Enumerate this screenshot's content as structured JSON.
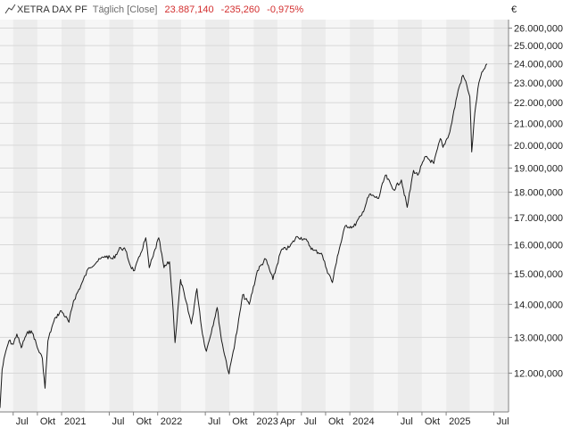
{
  "colors": {
    "price_line": "#1a1a1a",
    "band_light": "#f6f6f6",
    "band_dark": "#ececec",
    "grid": "#d8d8d8",
    "negative": "#d32f2f",
    "legend_gray": "#6e6e6e",
    "axis": "#808080"
  },
  "legend": {
    "icon": "line-chart-icon",
    "symbol": "XETRA DAX PF",
    "interval": "Täglich [Close]",
    "last": "23.887,140",
    "change": "-235,260",
    "change_pct": "-0,975%"
  },
  "chart_data": {
    "type": "line",
    "title": "",
    "xlabel": "",
    "ylabel": "",
    "currency_label": "€",
    "ylim": [
      11000,
      26500
    ],
    "y_scale": "log",
    "grid": true,
    "legend_position": "top-left",
    "x_range": [
      "2020-05-12",
      "2025-08-26"
    ],
    "y_ticks": [
      {
        "value": 12000,
        "label": "12.000,000"
      },
      {
        "value": 13000,
        "label": "13.000,000"
      },
      {
        "value": 14000,
        "label": "14.000,000"
      },
      {
        "value": 15000,
        "label": "15.000,000"
      },
      {
        "value": 16000,
        "label": "16.000,000"
      },
      {
        "value": 17000,
        "label": "17.000,000"
      },
      {
        "value": 18000,
        "label": "18.000,000"
      },
      {
        "value": 19000,
        "label": "19.000,000"
      },
      {
        "value": 20000,
        "label": "20.000,000"
      },
      {
        "value": 21000,
        "label": "21.000,000"
      },
      {
        "value": 22000,
        "label": "22.000,000"
      },
      {
        "value": 23000,
        "label": "23.000,000"
      },
      {
        "value": 24000,
        "label": "24.000,000"
      },
      {
        "value": 25000,
        "label": "25.000,000"
      },
      {
        "value": 26000,
        "label": "26.000,000"
      }
    ],
    "x_ticks": [
      {
        "date": "2020-07-01",
        "label": "Jul"
      },
      {
        "date": "2020-10-01",
        "label": "Okt"
      },
      {
        "date": "2021-01-01",
        "label": "2021"
      },
      {
        "date": "2021-07-01",
        "label": "Jul"
      },
      {
        "date": "2021-10-01",
        "label": "Okt"
      },
      {
        "date": "2022-01-01",
        "label": "2022"
      },
      {
        "date": "2022-07-01",
        "label": "Jul"
      },
      {
        "date": "2022-10-01",
        "label": "Okt"
      },
      {
        "date": "2023-01-01",
        "label": "2023"
      },
      {
        "date": "2023-04-01",
        "label": "Apr"
      },
      {
        "date": "2023-07-01",
        "label": "Jul"
      },
      {
        "date": "2023-10-01",
        "label": "Okt"
      },
      {
        "date": "2024-01-01",
        "label": "2024"
      },
      {
        "date": "2024-07-01",
        "label": "Jul"
      },
      {
        "date": "2024-10-01",
        "label": "Okt"
      },
      {
        "date": "2025-01-01",
        "label": "2025"
      },
      {
        "date": "2025-07-01",
        "label": "Jul"
      }
    ],
    "series": [
      {
        "color": "#1a1a1a",
        "points": [
          [
            "2020-05-12",
            11100
          ],
          [
            "2020-05-20",
            12100
          ],
          [
            "2020-06-03",
            12600
          ],
          [
            "2020-06-15",
            12900
          ],
          [
            "2020-07-01",
            12800
          ],
          [
            "2020-07-15",
            13100
          ],
          [
            "2020-08-01",
            12700
          ],
          [
            "2020-08-15",
            13000
          ],
          [
            "2020-09-01",
            13200
          ],
          [
            "2020-09-15",
            13100
          ],
          [
            "2020-10-01",
            12700
          ],
          [
            "2020-10-20",
            12400
          ],
          [
            "2020-10-30",
            11600
          ],
          [
            "2020-11-10",
            12900
          ],
          [
            "2020-11-25",
            13300
          ],
          [
            "2020-12-10",
            13600
          ],
          [
            "2020-12-31",
            13800
          ],
          [
            "2021-01-29",
            13450
          ],
          [
            "2021-02-15",
            14100
          ],
          [
            "2021-03-15",
            14600
          ],
          [
            "2021-04-15",
            15200
          ],
          [
            "2021-05-15",
            15400
          ],
          [
            "2021-06-15",
            15600
          ],
          [
            "2021-07-15",
            15500
          ],
          [
            "2021-08-13",
            15900
          ],
          [
            "2021-09-01",
            15800
          ],
          [
            "2021-09-20",
            15250
          ],
          [
            "2021-10-05",
            15100
          ],
          [
            "2021-10-25",
            15600
          ],
          [
            "2021-11-17",
            16250
          ],
          [
            "2021-11-30",
            15200
          ],
          [
            "2021-12-15",
            15600
          ],
          [
            "2022-01-05",
            16250
          ],
          [
            "2022-01-25",
            15200
          ],
          [
            "2022-02-15",
            15400
          ],
          [
            "2022-03-01",
            13800
          ],
          [
            "2022-03-08",
            12850
          ],
          [
            "2022-03-29",
            14800
          ],
          [
            "2022-04-15",
            14200
          ],
          [
            "2022-05-09",
            13400
          ],
          [
            "2022-05-30",
            14500
          ],
          [
            "2022-06-20",
            13100
          ],
          [
            "2022-07-05",
            12600
          ],
          [
            "2022-08-15",
            13900
          ],
          [
            "2022-09-01",
            12900
          ],
          [
            "2022-09-29",
            11980
          ],
          [
            "2022-10-15",
            12600
          ],
          [
            "2022-11-01",
            13300
          ],
          [
            "2022-11-20",
            14300
          ],
          [
            "2022-12-15",
            14000
          ],
          [
            "2023-01-15",
            15100
          ],
          [
            "2023-02-15",
            15500
          ],
          [
            "2023-03-15",
            14800
          ],
          [
            "2023-04-15",
            15800
          ],
          [
            "2023-05-15",
            15900
          ],
          [
            "2023-06-15",
            16300
          ],
          [
            "2023-07-15",
            16200
          ],
          [
            "2023-08-15",
            15800
          ],
          [
            "2023-09-15",
            15700
          ],
          [
            "2023-10-05",
            15150
          ],
          [
            "2023-10-27",
            14700
          ],
          [
            "2023-11-15",
            15600
          ],
          [
            "2023-12-15",
            16700
          ],
          [
            "2024-01-15",
            16650
          ],
          [
            "2024-02-15",
            17100
          ],
          [
            "2024-03-15",
            17900
          ],
          [
            "2024-04-19",
            17750
          ],
          [
            "2024-05-15",
            18700
          ],
          [
            "2024-06-15",
            18100
          ],
          [
            "2024-07-15",
            18500
          ],
          [
            "2024-08-06",
            17400
          ],
          [
            "2024-08-30",
            18900
          ],
          [
            "2024-09-15",
            18700
          ],
          [
            "2024-10-15",
            19500
          ],
          [
            "2024-11-15",
            19200
          ],
          [
            "2024-12-10",
            20300
          ],
          [
            "2024-12-20",
            19900
          ],
          [
            "2025-01-15",
            20600
          ],
          [
            "2025-02-15",
            22600
          ],
          [
            "2025-03-06",
            23400
          ],
          [
            "2025-03-20",
            22900
          ],
          [
            "2025-04-01",
            22300
          ],
          [
            "2025-04-08",
            19700
          ],
          [
            "2025-04-20",
            21500
          ],
          [
            "2025-05-05",
            23000
          ],
          [
            "2025-05-20",
            23600
          ],
          [
            "2025-06-05",
            24000
          ]
        ]
      }
    ]
  }
}
